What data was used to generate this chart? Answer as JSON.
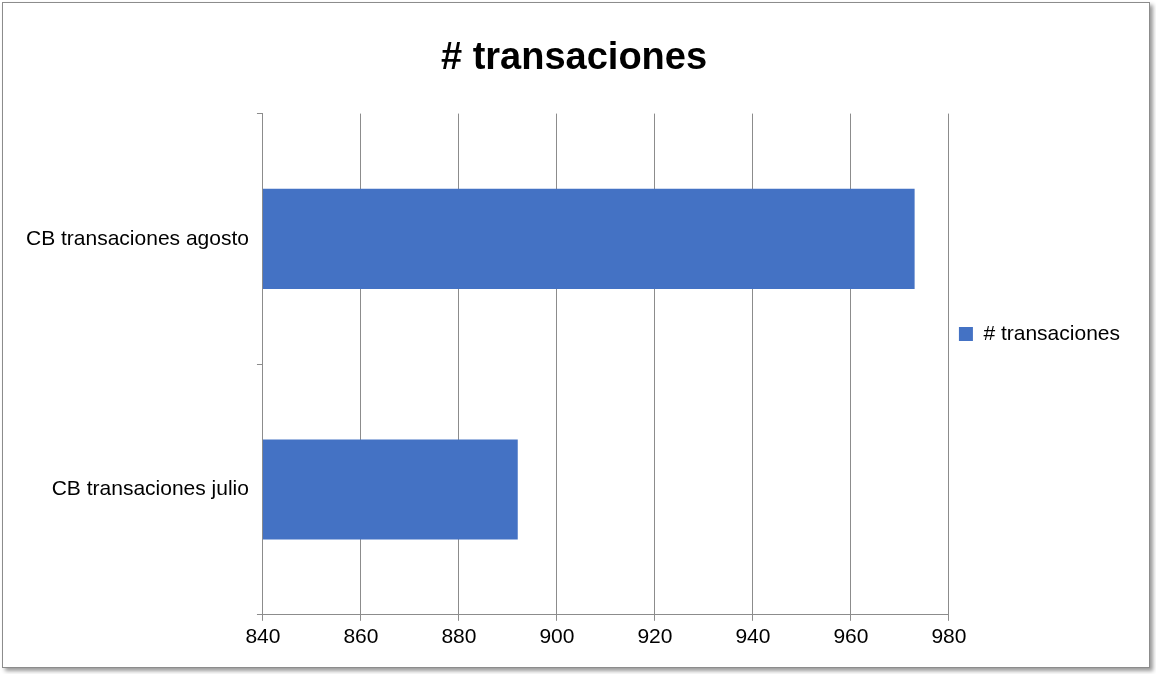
{
  "chart_data": {
    "type": "bar",
    "title": "# transaciones",
    "orientation": "horizontal",
    "categories": [
      "CB transaciones agosto",
      "CB transaciones julio"
    ],
    "series": [
      {
        "name": "# transaciones",
        "color": "#4472c4",
        "values": [
          973,
          892
        ]
      }
    ],
    "xlim": [
      840,
      980
    ],
    "xticks": [
      840,
      860,
      880,
      900,
      920,
      940,
      960,
      980
    ],
    "grid": "x",
    "legend": "right"
  }
}
